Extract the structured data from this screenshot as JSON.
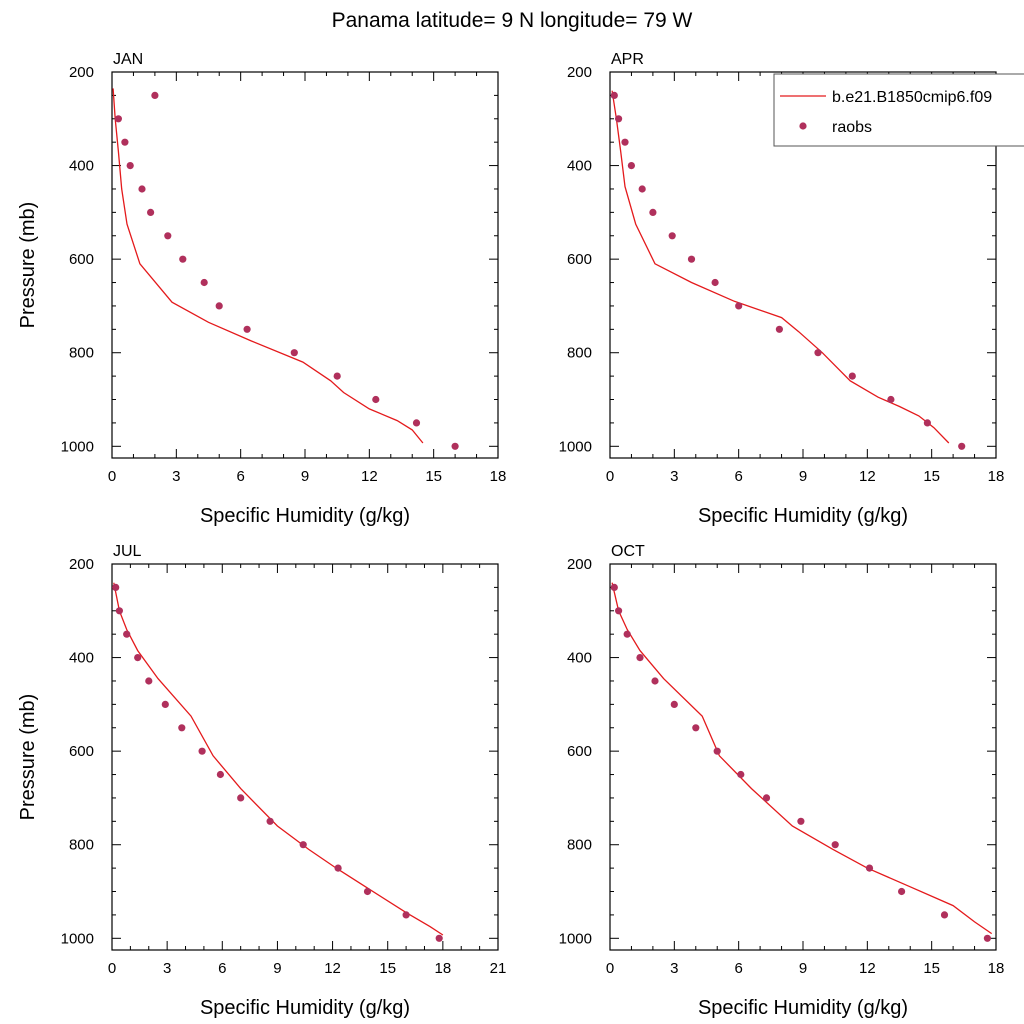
{
  "title": "Panama  latitude= 9 N longitude= 79 W",
  "colors": {
    "model_line": "#e41a1c",
    "obs_marker": "#b0305c",
    "axes": "#000000"
  },
  "legend": {
    "placement": "top-right of APR panel",
    "model_label": "b.e21.B1850cmip6.f09",
    "obs_label": "raobs"
  },
  "chart_data": [
    {
      "type": "line+scatter",
      "panel_label": "JAN",
      "xlabel": "Specific Humidity (g/kg)",
      "ylabel": "Pressure (mb)",
      "xlim": [
        0,
        18
      ],
      "ylim": [
        1025,
        200
      ],
      "xticks": [
        0,
        3,
        6,
        9,
        12,
        15,
        18
      ],
      "xtick_labels": [
        "0",
        "3",
        "6",
        "9",
        "12",
        "15",
        "18"
      ],
      "yticks": [
        200,
        400,
        600,
        800,
        1000
      ],
      "ytick_labels": [
        "200",
        "400",
        "600",
        "800",
        "1000"
      ],
      "series": [
        {
          "name": "b.e21.B1850cmip6.f09",
          "kind": "line",
          "points": [
            [
              0.05,
              235
            ],
            [
              0.15,
              300
            ],
            [
              0.3,
              370
            ],
            [
              0.45,
              450
            ],
            [
              0.7,
              525
            ],
            [
              1.3,
              610
            ],
            [
              2.8,
              692
            ],
            [
              4.5,
              735
            ],
            [
              6.5,
              775
            ],
            [
              8.9,
              820
            ],
            [
              10.2,
              860
            ],
            [
              10.8,
              885
            ],
            [
              12.0,
              920
            ],
            [
              13.3,
              945
            ],
            [
              14.0,
              965
            ],
            [
              14.5,
              993
            ]
          ]
        },
        {
          "name": "raobs",
          "kind": "scatter",
          "points": [
            [
              2.0,
              250
            ],
            [
              0.3,
              300
            ],
            [
              0.6,
              350
            ],
            [
              0.85,
              400
            ],
            [
              1.4,
              450
            ],
            [
              1.8,
              500
            ],
            [
              2.6,
              550
            ],
            [
              3.3,
              600
            ],
            [
              4.3,
              650
            ],
            [
              5.0,
              700
            ],
            [
              6.3,
              750
            ],
            [
              8.5,
              800
            ],
            [
              10.5,
              850
            ],
            [
              12.3,
              900
            ],
            [
              14.2,
              950
            ],
            [
              16.0,
              1000
            ]
          ]
        }
      ]
    },
    {
      "type": "line+scatter",
      "panel_label": "APR",
      "xlabel": "Specific Humidity (g/kg)",
      "ylabel": "",
      "xlim": [
        0,
        18
      ],
      "ylim": [
        1025,
        200
      ],
      "xticks": [
        0,
        3,
        6,
        9,
        12,
        15,
        18
      ],
      "xtick_labels": [
        "0",
        "3",
        "6",
        "9",
        "12",
        "15",
        "18"
      ],
      "yticks": [
        200,
        400,
        600,
        800,
        1000
      ],
      "ytick_labels": [
        "200",
        "400",
        "600",
        "800",
        "1000"
      ],
      "series": [
        {
          "name": "b.e21.B1850cmip6.f09",
          "kind": "line",
          "points": [
            [
              0.1,
              240
            ],
            [
              0.3,
              300
            ],
            [
              0.5,
              370
            ],
            [
              0.7,
              445
            ],
            [
              1.2,
              525
            ],
            [
              2.1,
              610
            ],
            [
              3.8,
              650
            ],
            [
              5.8,
              690
            ],
            [
              8.0,
              725
            ],
            [
              8.8,
              755
            ],
            [
              9.9,
              800
            ],
            [
              11.2,
              860
            ],
            [
              12.5,
              895
            ],
            [
              13.5,
              915
            ],
            [
              14.4,
              935
            ],
            [
              15.1,
              960
            ],
            [
              15.8,
              993
            ]
          ]
        },
        {
          "name": "raobs",
          "kind": "scatter",
          "points": [
            [
              0.2,
              250
            ],
            [
              0.4,
              300
            ],
            [
              0.7,
              350
            ],
            [
              1.0,
              400
            ],
            [
              1.5,
              450
            ],
            [
              2.0,
              500
            ],
            [
              2.9,
              550
            ],
            [
              3.8,
              600
            ],
            [
              4.9,
              650
            ],
            [
              6.0,
              700
            ],
            [
              7.9,
              750
            ],
            [
              9.7,
              800
            ],
            [
              11.3,
              850
            ],
            [
              13.1,
              900
            ],
            [
              14.8,
              950
            ],
            [
              16.4,
              1000
            ]
          ]
        }
      ]
    },
    {
      "type": "line+scatter",
      "panel_label": "JUL",
      "xlabel": "Specific Humidity (g/kg)",
      "ylabel": "Pressure (mb)",
      "xlim": [
        0,
        21
      ],
      "ylim": [
        1025,
        200
      ],
      "xticks": [
        0,
        3,
        6,
        9,
        12,
        15,
        18,
        21
      ],
      "xtick_labels": [
        "0",
        "3",
        "6",
        "9",
        "12",
        "15",
        "18",
        "21"
      ],
      "yticks": [
        200,
        400,
        600,
        800,
        1000
      ],
      "ytick_labels": [
        "200",
        "400",
        "600",
        "800",
        "1000"
      ],
      "series": [
        {
          "name": "b.e21.B1850cmip6.f09",
          "kind": "line",
          "points": [
            [
              0.1,
              240
            ],
            [
              0.4,
              300
            ],
            [
              0.8,
              340
            ],
            [
              1.4,
              385
            ],
            [
              2.5,
              445
            ],
            [
              4.3,
              525
            ],
            [
              5.5,
              610
            ],
            [
              7.0,
              680
            ],
            [
              9.0,
              760
            ],
            [
              10.7,
              810
            ],
            [
              12.2,
              850
            ],
            [
              14.0,
              895
            ],
            [
              16.0,
              945
            ],
            [
              17.3,
              975
            ],
            [
              18.0,
              993
            ]
          ]
        },
        {
          "name": "raobs",
          "kind": "scatter",
          "points": [
            [
              0.2,
              250
            ],
            [
              0.4,
              300
            ],
            [
              0.8,
              350
            ],
            [
              1.4,
              400
            ],
            [
              2.0,
              450
            ],
            [
              2.9,
              500
            ],
            [
              3.8,
              550
            ],
            [
              4.9,
              600
            ],
            [
              5.9,
              650
            ],
            [
              7.0,
              700
            ],
            [
              8.6,
              750
            ],
            [
              10.4,
              800
            ],
            [
              12.3,
              850
            ],
            [
              13.9,
              900
            ],
            [
              16.0,
              950
            ],
            [
              17.8,
              1000
            ]
          ]
        }
      ]
    },
    {
      "type": "line+scatter",
      "panel_label": "OCT",
      "xlabel": "Specific Humidity (g/kg)",
      "ylabel": "",
      "xlim": [
        0,
        18
      ],
      "ylim": [
        1025,
        200
      ],
      "xticks": [
        0,
        3,
        6,
        9,
        12,
        15,
        18
      ],
      "xtick_labels": [
        "0",
        "3",
        "6",
        "9",
        "12",
        "15",
        "18"
      ],
      "yticks": [
        200,
        400,
        600,
        800,
        1000
      ],
      "ytick_labels": [
        "200",
        "400",
        "600",
        "800",
        "1000"
      ],
      "series": [
        {
          "name": "b.e21.B1850cmip6.f09",
          "kind": "line",
          "points": [
            [
              0.1,
              240
            ],
            [
              0.4,
              300
            ],
            [
              0.8,
              340
            ],
            [
              1.4,
              385
            ],
            [
              2.5,
              445
            ],
            [
              4.3,
              525
            ],
            [
              5.1,
              610
            ],
            [
              6.6,
              680
            ],
            [
              8.5,
              760
            ],
            [
              10.4,
              810
            ],
            [
              12.0,
              850
            ],
            [
              14.0,
              890
            ],
            [
              16.0,
              930
            ],
            [
              17.0,
              965
            ],
            [
              17.8,
              990
            ]
          ]
        },
        {
          "name": "raobs",
          "kind": "scatter",
          "points": [
            [
              0.2,
              250
            ],
            [
              0.4,
              300
            ],
            [
              0.8,
              350
            ],
            [
              1.4,
              400
            ],
            [
              2.1,
              450
            ],
            [
              3.0,
              500
            ],
            [
              4.0,
              550
            ],
            [
              5.0,
              600
            ],
            [
              6.1,
              650
            ],
            [
              7.3,
              700
            ],
            [
              8.9,
              750
            ],
            [
              10.5,
              800
            ],
            [
              12.1,
              850
            ],
            [
              13.6,
              900
            ],
            [
              15.6,
              950
            ],
            [
              17.6,
              1000
            ]
          ]
        }
      ]
    }
  ]
}
